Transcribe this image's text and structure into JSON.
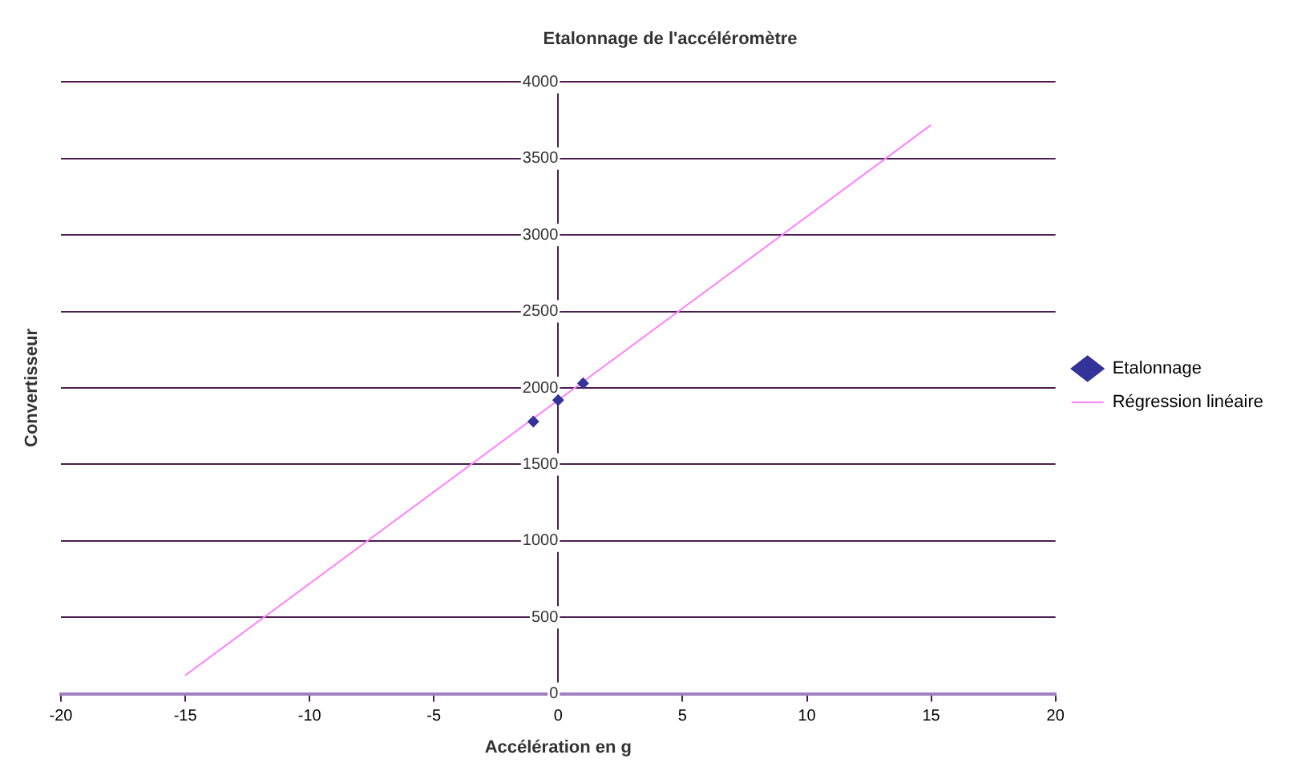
{
  "chart_data": {
    "type": "scatter",
    "title": "Etalonnage de l'accéléromètre",
    "xlabel": "Accélération en g",
    "ylabel": "Convertisseur",
    "series": [
      {
        "name": "Etalonnage",
        "color": "#333399",
        "x": [
          -1,
          0,
          1
        ],
        "values": [
          1780,
          1920,
          2030
        ],
        "marker": "diamond"
      },
      {
        "name": "Régression linéaire",
        "type": "line",
        "color": "#ff80ff",
        "x": [
          -15,
          15
        ],
        "values": [
          120,
          3720
        ],
        "marker": "none"
      }
    ],
    "xlim": [
      -20,
      20
    ],
    "xticks": [
      -20,
      -15,
      -10,
      -5,
      0,
      5,
      10,
      15,
      20
    ],
    "ylim": [
      0,
      4000
    ],
    "yticks": [
      0,
      500,
      1000,
      1500,
      2000,
      2500,
      3000,
      3500,
      4000
    ],
    "grid": "y",
    "legend": "right"
  }
}
